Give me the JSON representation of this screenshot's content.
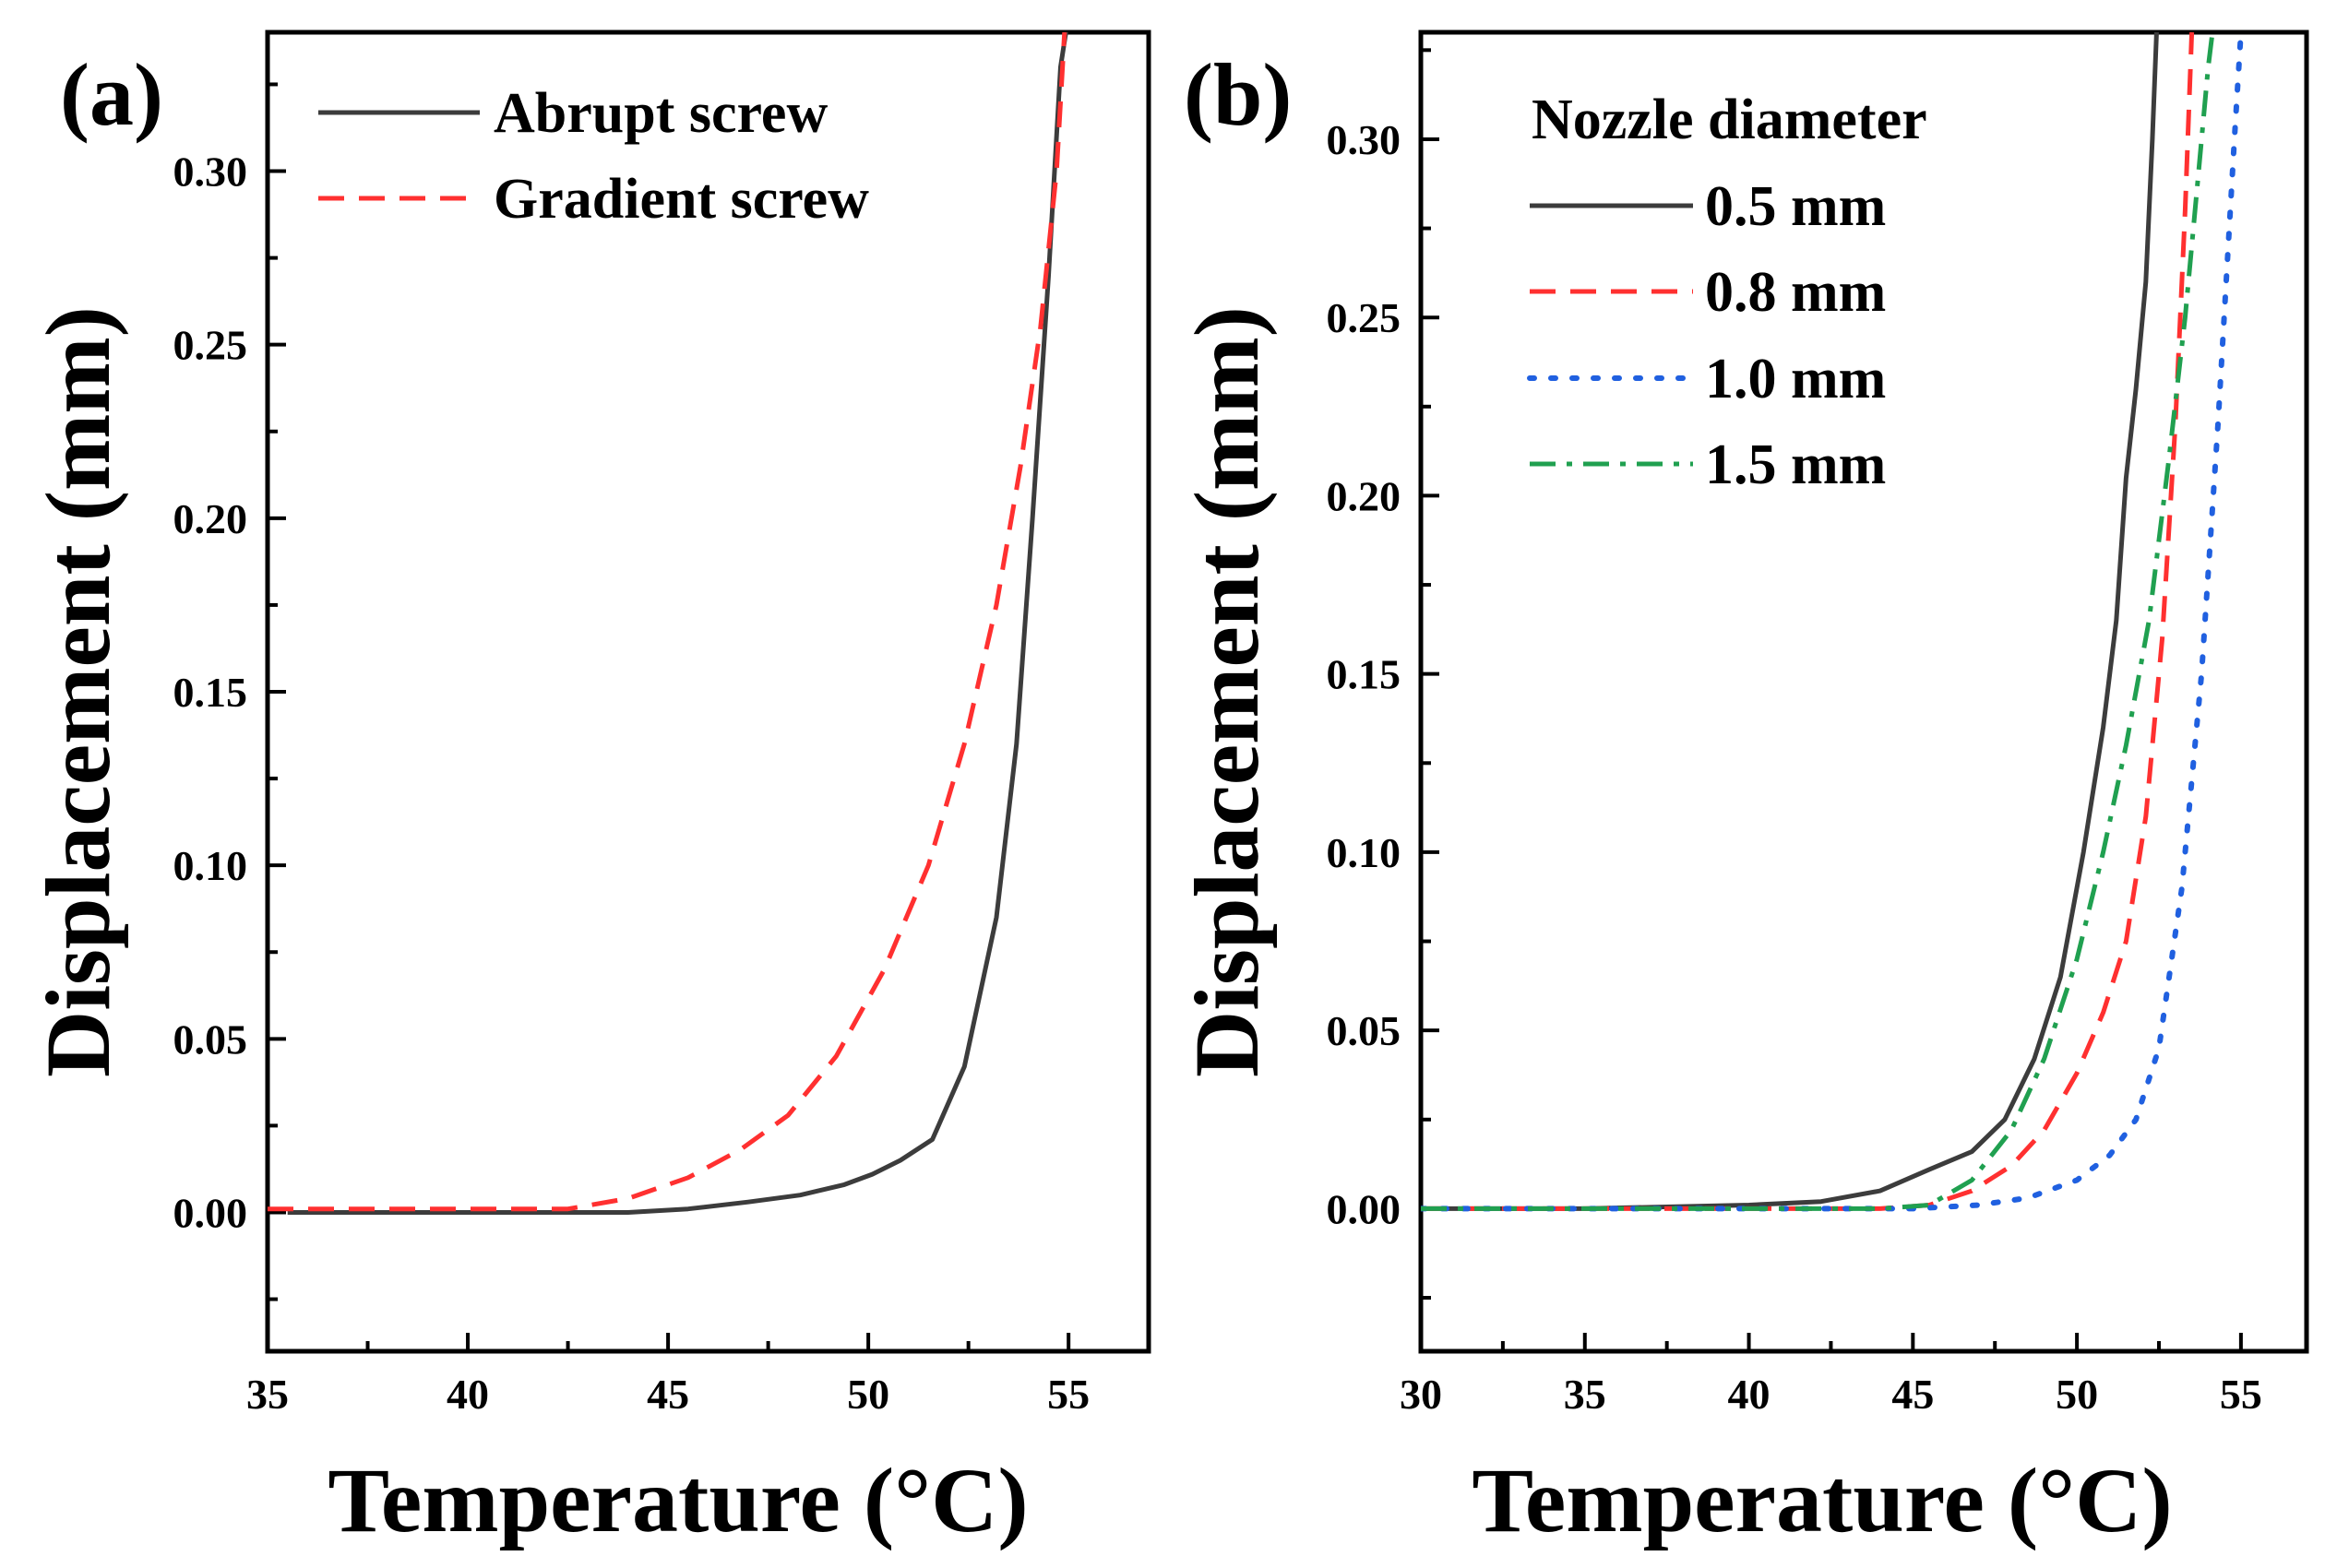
{
  "figure": {
    "panels": [
      "(a)",
      "(b)"
    ]
  },
  "chart_data": [
    {
      "type": "line",
      "panel_label": "(a)",
      "xlabel": "Temperature (°C)",
      "ylabel": "Displacement (mm)",
      "xlim": [
        35,
        57
      ],
      "ylim": [
        -0.04,
        0.34
      ],
      "x_ticks": [
        "35",
        "40",
        "45",
        "50",
        "55"
      ],
      "x_tick_values": [
        35,
        40,
        45,
        50,
        55
      ],
      "y_ticks": [
        "0.00",
        "0.05",
        "0.10",
        "0.15",
        "0.20",
        "0.25",
        "0.30"
      ],
      "y_tick_values": [
        0,
        0.05,
        0.1,
        0.15,
        0.2,
        0.25,
        0.3
      ],
      "legend": {
        "title": "",
        "position": "top-left"
      },
      "series": [
        {
          "name": "Abrupt screw",
          "color": "#3c3c3c",
          "dash": "solid",
          "x": [
            35.5,
            37.8,
            40.0,
            42.5,
            44.0,
            45.5,
            47.0,
            48.3,
            49.4,
            50.1,
            50.8,
            51.6,
            52.4,
            53.2,
            53.7,
            54.1,
            54.5,
            54.8,
            55.0
          ],
          "y": [
            0.0,
            0.0,
            0.0,
            0.0,
            0.0,
            0.001,
            0.003,
            0.005,
            0.008,
            0.011,
            0.015,
            0.021,
            0.042,
            0.085,
            0.135,
            0.2,
            0.27,
            0.33,
            0.345
          ]
        },
        {
          "name": "Gradient screw",
          "color": "#ff3030",
          "dash": "dashed",
          "x": [
            35.0,
            37.5,
            40.0,
            42.5,
            44.0,
            45.5,
            46.8,
            48.0,
            49.2,
            50.4,
            51.5,
            52.4,
            53.2,
            53.8,
            54.3,
            54.7,
            54.9
          ],
          "y": [
            0.001,
            0.001,
            0.001,
            0.001,
            0.004,
            0.01,
            0.018,
            0.028,
            0.045,
            0.07,
            0.1,
            0.135,
            0.175,
            0.215,
            0.255,
            0.3,
            0.34
          ]
        }
      ]
    },
    {
      "type": "line",
      "panel_label": "(b)",
      "xlabel": "Temperature (°C)",
      "ylabel": "Displacement (mm)",
      "xlim": [
        30,
        57
      ],
      "ylim": [
        -0.04,
        0.33
      ],
      "x_ticks": [
        "30",
        "35",
        "40",
        "45",
        "50",
        "55"
      ],
      "x_tick_values": [
        30,
        35,
        40,
        45,
        50,
        55
      ],
      "y_ticks": [
        "0.00",
        "0.05",
        "0.10",
        "0.15",
        "0.20",
        "0.25",
        "0.30"
      ],
      "y_tick_values": [
        0,
        0.05,
        0.1,
        0.15,
        0.2,
        0.25,
        0.3
      ],
      "legend": {
        "title": "Nozzle diameter",
        "position": "top-right"
      },
      "series": [
        {
          "name": "0.5 mm",
          "color": "#3c3c3c",
          "dash": "solid",
          "x": [
            30.0,
            35.0,
            40.0,
            42.2,
            44.0,
            45.5,
            46.8,
            47.8,
            48.7,
            49.5,
            50.2,
            50.8,
            51.2,
            51.5,
            51.8,
            52.1,
            52.3,
            52.45
          ],
          "y": [
            0.0,
            0.0,
            0.001,
            0.002,
            0.005,
            0.011,
            0.016,
            0.025,
            0.042,
            0.065,
            0.1,
            0.135,
            0.165,
            0.205,
            0.23,
            0.26,
            0.3,
            0.335
          ]
        },
        {
          "name": "0.8 mm",
          "color": "#ff3030",
          "dash": "dashed",
          "x": [
            30.0,
            35.0,
            40.0,
            44.0,
            45.5,
            46.8,
            48.0,
            49.0,
            50.0,
            50.8,
            51.5,
            52.1,
            52.6,
            53.0,
            53.3,
            53.5
          ],
          "y": [
            0.0,
            0.0,
            0.0,
            0.0,
            0.001,
            0.005,
            0.012,
            0.022,
            0.038,
            0.055,
            0.075,
            0.11,
            0.16,
            0.22,
            0.28,
            0.33
          ]
        },
        {
          "name": "1.0 mm",
          "color": "#2060e0",
          "dash": "dotted",
          "x": [
            30.0,
            35.0,
            40.0,
            45.0,
            47.0,
            48.5,
            50.0,
            51.0,
            51.8,
            52.5,
            53.2,
            53.8,
            54.3,
            54.8,
            55.0
          ],
          "y": [
            0.0,
            0.0,
            0.0,
            0.0,
            0.001,
            0.003,
            0.008,
            0.015,
            0.025,
            0.045,
            0.09,
            0.15,
            0.22,
            0.3,
            0.33
          ]
        },
        {
          "name": "1.5 mm",
          "color": "#20a050",
          "dash": "dashdot",
          "x": [
            30.0,
            35.0,
            40.0,
            44.0,
            45.5,
            46.8,
            48.0,
            49.0,
            50.0,
            50.8,
            51.5,
            52.2,
            52.8,
            53.3,
            53.7,
            54.0,
            54.2
          ],
          "y": [
            0.0,
            0.0,
            0.0,
            0.0,
            0.001,
            0.008,
            0.022,
            0.042,
            0.07,
            0.1,
            0.13,
            0.165,
            0.21,
            0.25,
            0.29,
            0.32,
            0.335
          ]
        }
      ]
    }
  ]
}
